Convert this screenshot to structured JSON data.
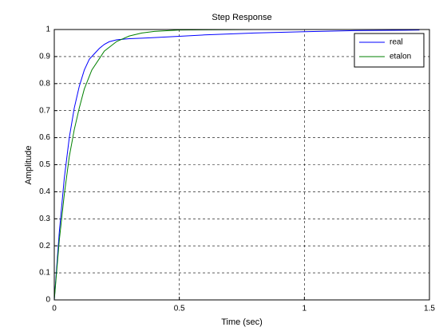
{
  "chart_data": {
    "type": "line",
    "title": "Step Response",
    "x_label": "Time (sec)",
    "y_label": "Amplitude",
    "xlim": [
      0,
      1.5
    ],
    "ylim": [
      0,
      1
    ],
    "xticks": [
      0,
      0.5,
      1,
      1.5
    ],
    "yticks": [
      0,
      0.1,
      0.2,
      0.3,
      0.4,
      0.5,
      0.6,
      0.7,
      0.8,
      0.9,
      1
    ],
    "grid": true,
    "legend": "top-right",
    "series": [
      {
        "name": "real",
        "color": "#0000ff",
        "x": [
          0,
          0.02,
          0.04,
          0.06,
          0.08,
          0.1,
          0.12,
          0.14,
          0.16,
          0.18,
          0.2,
          0.22,
          0.25,
          0.3,
          0.35,
          0.4,
          0.5,
          0.6,
          0.8,
          1.0,
          1.2,
          1.46
        ],
        "values": [
          0,
          0.25,
          0.45,
          0.6,
          0.71,
          0.79,
          0.85,
          0.89,
          0.91,
          0.93,
          0.945,
          0.955,
          0.962,
          0.966,
          0.968,
          0.97,
          0.975,
          0.98,
          0.987,
          0.992,
          0.996,
          0.998
        ]
      },
      {
        "name": "etalon",
        "color": "#008000",
        "x": [
          0,
          0.02,
          0.04,
          0.06,
          0.08,
          0.1,
          0.12,
          0.15,
          0.2,
          0.25,
          0.3,
          0.35,
          0.4,
          0.5,
          0.6,
          0.8,
          1.0,
          1.2,
          1.5
        ],
        "values": [
          0,
          0.22,
          0.39,
          0.53,
          0.63,
          0.71,
          0.78,
          0.85,
          0.92,
          0.956,
          0.976,
          0.987,
          0.993,
          0.998,
          0.999,
          1,
          1,
          1,
          1
        ]
      }
    ]
  }
}
